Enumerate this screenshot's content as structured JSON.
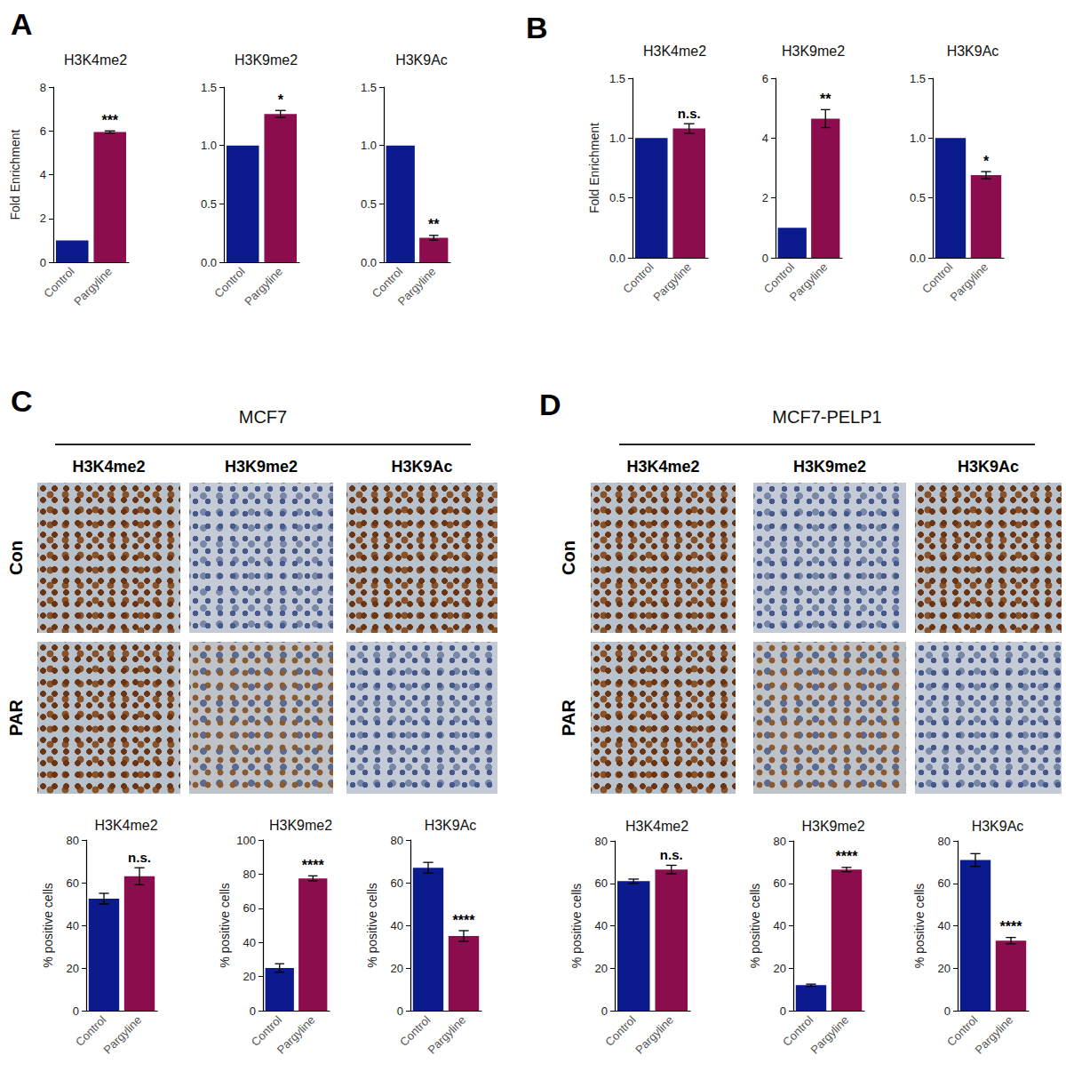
{
  "panel_labels": [
    "A",
    "B",
    "C",
    "D"
  ],
  "image_panels": [
    {
      "title": "MCF7",
      "columns": [
        "H3K4me2",
        "H3K9me2",
        "H3K9Ac"
      ],
      "rows": [
        "Con",
        "PAR"
      ]
    },
    {
      "title": "MCF7-PELP1",
      "columns": [
        "H3K4me2",
        "H3K9me2",
        "H3K9Ac"
      ],
      "rows": [
        "Con",
        "PAR"
      ]
    }
  ],
  "chart_data": [
    {
      "type": "bar",
      "title": "H3K4me2",
      "ylabel": "Fold Enrichment",
      "categories": [
        "Control",
        "Pargyline"
      ],
      "values": [
        1,
        5.95
      ],
      "errors": [
        null,
        0.05
      ],
      "colors": [
        "#0b1a8c",
        "#8b0d4e"
      ],
      "ylim": [
        0,
        8
      ],
      "yticks": [
        0,
        2,
        4,
        6,
        8
      ],
      "annotation": "***"
    },
    {
      "type": "bar",
      "title": "H3K9me2",
      "categories": [
        "Control",
        "Pargyline"
      ],
      "values": [
        1,
        1.27
      ],
      "errors": [
        null,
        0.03
      ],
      "colors": [
        "#0b1a8c",
        "#8b0d4e"
      ],
      "ylim": [
        0,
        1.5
      ],
      "yticks": [
        {
          "value": 0,
          "label": "0.0"
        },
        0.5,
        {
          "value": 1,
          "label": "1.0"
        },
        1.5
      ],
      "annotation": "*"
    },
    {
      "type": "bar",
      "title": "H3K9Ac",
      "categories": [
        "Control",
        "Pargyline"
      ],
      "values": [
        1,
        0.21
      ],
      "errors": [
        null,
        0.02
      ],
      "colors": [
        "#0b1a8c",
        "#8b0d4e"
      ],
      "ylim": [
        0,
        1.5
      ],
      "yticks": [
        {
          "value": 0,
          "label": "0.0"
        },
        0.5,
        {
          "value": 1,
          "label": "1.0"
        },
        1.5
      ],
      "annotation": "**"
    },
    {
      "type": "bar",
      "title": "H3K4me2",
      "ylabel": "Fold Enrichment",
      "categories": [
        "Control",
        "Pargyline"
      ],
      "values": [
        1,
        1.08
      ],
      "errors": [
        null,
        0.04
      ],
      "colors": [
        "#0b1a8c",
        "#8b0d4e"
      ],
      "ylim": [
        0,
        1.5
      ],
      "yticks": [
        {
          "value": 0,
          "label": "0.0"
        },
        0.5,
        {
          "value": 1,
          "label": "1.0"
        },
        1.5
      ],
      "annotation": "n.s."
    },
    {
      "type": "bar",
      "title": "H3K9me2",
      "categories": [
        "Control",
        "Pargyline"
      ],
      "values": [
        1,
        4.65
      ],
      "errors": [
        null,
        0.3
      ],
      "colors": [
        "#0b1a8c",
        "#8b0d4e"
      ],
      "ylim": [
        0,
        6
      ],
      "yticks": [
        0,
        2,
        4,
        6
      ],
      "annotation": "**"
    },
    {
      "type": "bar",
      "title": "H3K9Ac",
      "categories": [
        "Control",
        "Pargyline"
      ],
      "values": [
        1,
        0.69
      ],
      "errors": [
        null,
        0.03
      ],
      "colors": [
        "#0b1a8c",
        "#8b0d4e"
      ],
      "ylim": [
        0,
        1.5
      ],
      "yticks": [
        {
          "value": 0,
          "label": "0.0"
        },
        0.5,
        {
          "value": 1,
          "label": "1.0"
        },
        1.5
      ],
      "annotation": "*"
    },
    {
      "type": "bar",
      "title": "H3K4me2",
      "ylabel": "% positive cells",
      "categories": [
        "Control",
        "Pargyline"
      ],
      "values": [
        52.5,
        63
      ],
      "errors": [
        2.5,
        4
      ],
      "colors": [
        "#0b1a8c",
        "#8b0d4e"
      ],
      "ylim": [
        0,
        80
      ],
      "yticks": [
        0,
        20,
        40,
        60,
        80
      ],
      "annotation": "n.s."
    },
    {
      "type": "bar",
      "title": "H3K9me2",
      "ylabel": "% positive cells",
      "categories": [
        "Control",
        "Pargyline"
      ],
      "values": [
        25,
        77.5
      ],
      "errors": [
        2.5,
        1.5
      ],
      "colors": [
        "#0b1a8c",
        "#8b0d4e"
      ],
      "ylim": [
        0,
        100
      ],
      "yticks": [
        0,
        20,
        40,
        60,
        80,
        100
      ],
      "annotation": "****"
    },
    {
      "type": "bar",
      "title": "H3K9Ac",
      "ylabel": "% positive cells",
      "categories": [
        "Control",
        "Pargyline"
      ],
      "values": [
        67,
        35
      ],
      "errors": [
        2.5,
        2.5
      ],
      "colors": [
        "#0b1a8c",
        "#8b0d4e"
      ],
      "ylim": [
        0,
        80
      ],
      "yticks": [
        0,
        20,
        40,
        60,
        80
      ],
      "annotation": "****"
    },
    {
      "type": "bar",
      "title": "H3K4me2",
      "ylabel": "% positive cells",
      "categories": [
        "Control",
        "Pargyline"
      ],
      "values": [
        61,
        66.5
      ],
      "errors": [
        1,
        2
      ],
      "colors": [
        "#0b1a8c",
        "#8b0d4e"
      ],
      "ylim": [
        0,
        80
      ],
      "yticks": [
        0,
        20,
        40,
        60,
        80
      ],
      "annotation": "n.s."
    },
    {
      "type": "bar",
      "title": "H3K9me2",
      "ylabel": "% positive cells",
      "categories": [
        "Control",
        "Pargyline"
      ],
      "values": [
        12,
        66.5
      ],
      "errors": [
        0.5,
        1
      ],
      "colors": [
        "#0b1a8c",
        "#8b0d4e"
      ],
      "ylim": [
        0,
        80
      ],
      "yticks": [
        0,
        20,
        40,
        60,
        80
      ],
      "annotation": "****"
    },
    {
      "type": "bar",
      "title": "H3K9Ac",
      "ylabel": "% positive cells",
      "categories": [
        "Control",
        "Pargyline"
      ],
      "values": [
        71,
        33
      ],
      "errors": [
        3,
        1.5
      ],
      "colors": [
        "#0b1a8c",
        "#8b0d4e"
      ],
      "ylim": [
        0,
        80
      ],
      "yticks": [
        0,
        20,
        40,
        60,
        80
      ],
      "annotation": "****"
    }
  ]
}
